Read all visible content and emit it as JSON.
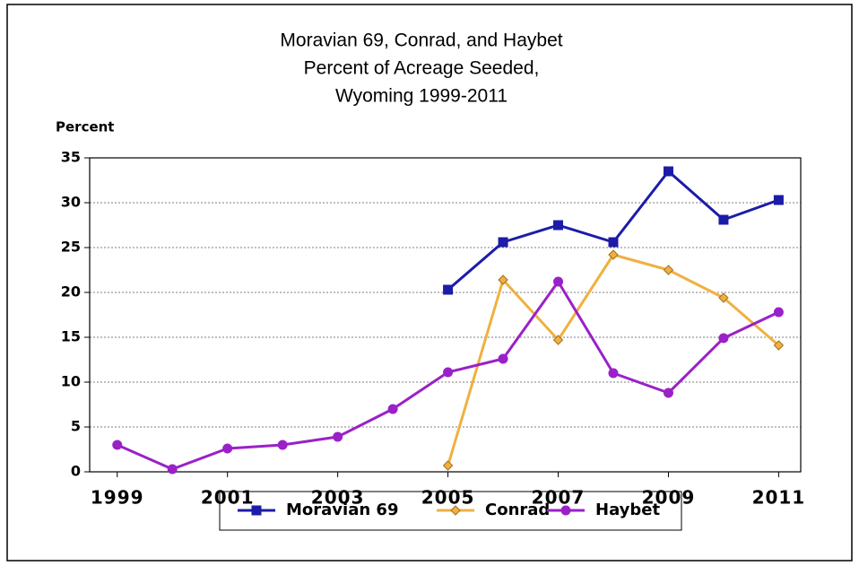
{
  "chart_data": {
    "type": "line",
    "title": [
      "Moravian 69, Conrad, and Haybet",
      "Percent of Acreage Seeded,",
      "Wyoming 1999-2011"
    ],
    "y_label": "Percent",
    "x": [
      1999,
      2000,
      2001,
      2002,
      2003,
      2004,
      2005,
      2006,
      2007,
      2008,
      2009,
      2010,
      2011
    ],
    "xlim": [
      1998.5,
      2011.4
    ],
    "xticks": [
      1999,
      2001,
      2003,
      2005,
      2007,
      2009,
      2011
    ],
    "ylim": [
      0,
      35
    ],
    "yticks": [
      0,
      5,
      10,
      15,
      20,
      25,
      30,
      35
    ],
    "grid": true,
    "legend": "bottom",
    "series": [
      {
        "name": "Moravian 69",
        "color": "#1c1ca8",
        "marker": "square",
        "values": [
          null,
          null,
          null,
          null,
          null,
          null,
          20.3,
          25.6,
          27.5,
          25.6,
          33.5,
          28.1,
          30.3
        ]
      },
      {
        "name": "Conrad",
        "color": "#f0b040",
        "marker": "diamond",
        "values": [
          null,
          null,
          null,
          null,
          null,
          null,
          0.7,
          21.4,
          14.7,
          24.2,
          22.5,
          19.4,
          14.1
        ]
      },
      {
        "name": "Haybet",
        "color": "#9a21c8",
        "marker": "circle",
        "values": [
          3.0,
          0.3,
          2.6,
          3.0,
          3.9,
          7.0,
          11.1,
          12.6,
          21.2,
          11.0,
          8.8,
          14.9,
          17.8
        ]
      }
    ]
  }
}
